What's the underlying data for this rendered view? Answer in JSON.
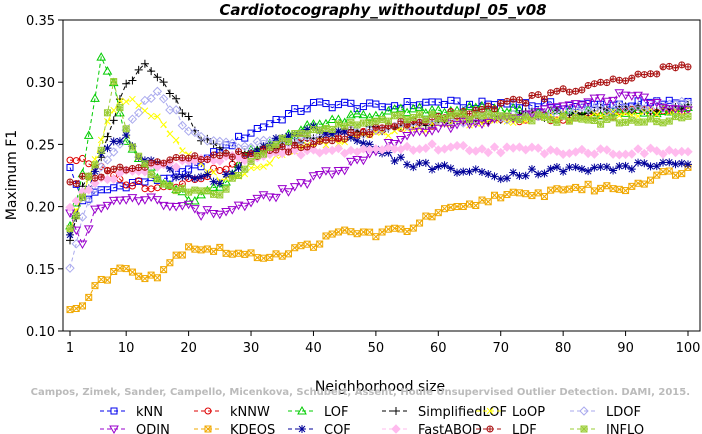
{
  "chart_data": {
    "type": "line",
    "title": "Cardiotocography_withoutdupl_05_v08",
    "xlabel": "Neighborhood size",
    "ylabel": "Maximum F1",
    "xlim": [
      1,
      100
    ],
    "ylim": [
      0.1,
      0.35
    ],
    "x_ticks": [
      1,
      10,
      20,
      30,
      40,
      50,
      60,
      70,
      80,
      90,
      100
    ],
    "y_ticks": [
      "0.10",
      "0.15",
      "0.20",
      "0.25",
      "0.30",
      "0.35"
    ],
    "grid": false,
    "legend_position": "bottom",
    "credit": "Campos, Zimek, Sander, Campello, Micenkova, Schubert, Assent, Houle  Unsupervised Outlier Detection. DAMI, 2015.",
    "series": [
      {
        "name": "kNN",
        "color": "#0000ee",
        "marker": "square",
        "anchors": [
          [
            1,
            0.23
          ],
          [
            3,
            0.205
          ],
          [
            6,
            0.212
          ],
          [
            10,
            0.218
          ],
          [
            15,
            0.222
          ],
          [
            20,
            0.228
          ],
          [
            25,
            0.245
          ],
          [
            30,
            0.26
          ],
          [
            35,
            0.272
          ],
          [
            40,
            0.282
          ],
          [
            45,
            0.282
          ],
          [
            50,
            0.28
          ],
          [
            55,
            0.282
          ],
          [
            60,
            0.284
          ],
          [
            65,
            0.281
          ],
          [
            70,
            0.283
          ],
          [
            80,
            0.281
          ],
          [
            90,
            0.282
          ],
          [
            100,
            0.284
          ]
        ]
      },
      {
        "name": "kNNW",
        "color": "#dd0000",
        "marker": "circle",
        "anchors": [
          [
            1,
            0.235
          ],
          [
            3,
            0.24
          ],
          [
            6,
            0.232
          ],
          [
            10,
            0.22
          ],
          [
            15,
            0.215
          ],
          [
            20,
            0.22
          ],
          [
            25,
            0.23
          ],
          [
            30,
            0.24
          ],
          [
            35,
            0.248
          ],
          [
            40,
            0.255
          ],
          [
            50,
            0.262
          ],
          [
            60,
            0.268
          ],
          [
            70,
            0.27
          ],
          [
            80,
            0.272
          ],
          [
            90,
            0.275
          ],
          [
            100,
            0.278
          ]
        ]
      },
      {
        "name": "LOF",
        "color": "#00cc00",
        "marker": "triangle",
        "anchors": [
          [
            1,
            0.185
          ],
          [
            3,
            0.225
          ],
          [
            6,
            0.32
          ],
          [
            8,
            0.3
          ],
          [
            10,
            0.255
          ],
          [
            12,
            0.24
          ],
          [
            15,
            0.225
          ],
          [
            20,
            0.205
          ],
          [
            25,
            0.215
          ],
          [
            30,
            0.245
          ],
          [
            35,
            0.255
          ],
          [
            40,
            0.265
          ],
          [
            45,
            0.27
          ],
          [
            50,
            0.275
          ],
          [
            60,
            0.278
          ],
          [
            70,
            0.278
          ],
          [
            80,
            0.275
          ],
          [
            90,
            0.275
          ],
          [
            100,
            0.278
          ]
        ]
      },
      {
        "name": "SimplifiedLOF",
        "color": "#000000",
        "marker": "plus",
        "anchors": [
          [
            1,
            0.17
          ],
          [
            3,
            0.215
          ],
          [
            6,
            0.24
          ],
          [
            8,
            0.27
          ],
          [
            10,
            0.3
          ],
          [
            13,
            0.312
          ],
          [
            15,
            0.305
          ],
          [
            18,
            0.285
          ],
          [
            20,
            0.27
          ],
          [
            22,
            0.255
          ],
          [
            25,
            0.245
          ],
          [
            28,
            0.24
          ],
          [
            30,
            0.245
          ],
          [
            35,
            0.248
          ],
          [
            40,
            0.255
          ],
          [
            45,
            0.26
          ],
          [
            50,
            0.262
          ],
          [
            60,
            0.268
          ],
          [
            70,
            0.272
          ],
          [
            80,
            0.275
          ],
          [
            90,
            0.278
          ],
          [
            100,
            0.28
          ]
        ]
      },
      {
        "name": "LoOP",
        "color": "#ffff00",
        "marker": "x",
        "anchors": [
          [
            1,
            0.18
          ],
          [
            3,
            0.21
          ],
          [
            6,
            0.255
          ],
          [
            8,
            0.28
          ],
          [
            10,
            0.285
          ],
          [
            13,
            0.28
          ],
          [
            15,
            0.27
          ],
          [
            18,
            0.255
          ],
          [
            20,
            0.24
          ],
          [
            22,
            0.235
          ],
          [
            25,
            0.22
          ],
          [
            30,
            0.23
          ],
          [
            35,
            0.24
          ],
          [
            40,
            0.25
          ],
          [
            50,
            0.258
          ],
          [
            60,
            0.265
          ],
          [
            70,
            0.27
          ],
          [
            80,
            0.272
          ],
          [
            90,
            0.275
          ],
          [
            100,
            0.278
          ]
        ]
      },
      {
        "name": "LDOF",
        "color": "#aaaaee",
        "marker": "diamond",
        "anchors": [
          [
            1,
            0.15
          ],
          [
            3,
            0.19
          ],
          [
            6,
            0.23
          ],
          [
            10,
            0.26
          ],
          [
            13,
            0.285
          ],
          [
            15,
            0.29
          ],
          [
            18,
            0.275
          ],
          [
            20,
            0.26
          ],
          [
            25,
            0.25
          ],
          [
            30,
            0.25
          ],
          [
            35,
            0.252
          ],
          [
            40,
            0.255
          ],
          [
            50,
            0.262
          ],
          [
            60,
            0.268
          ],
          [
            70,
            0.272
          ],
          [
            80,
            0.276
          ],
          [
            90,
            0.28
          ],
          [
            100,
            0.282
          ]
        ]
      },
      {
        "name": "ODIN",
        "color": "#9900cc",
        "marker": "triangle-down",
        "anchors": [
          [
            1,
            0.195
          ],
          [
            3,
            0.17
          ],
          [
            5,
            0.2
          ],
          [
            10,
            0.205
          ],
          [
            15,
            0.205
          ],
          [
            20,
            0.2
          ],
          [
            22,
            0.195
          ],
          [
            25,
            0.195
          ],
          [
            30,
            0.203
          ],
          [
            35,
            0.212
          ],
          [
            40,
            0.222
          ],
          [
            45,
            0.232
          ],
          [
            50,
            0.245
          ],
          [
            55,
            0.255
          ],
          [
            60,
            0.265
          ],
          [
            70,
            0.27
          ],
          [
            80,
            0.28
          ],
          [
            90,
            0.29
          ],
          [
            100,
            0.275
          ]
        ]
      },
      {
        "name": "KDEOS",
        "color": "#f0a800",
        "marker": "square-x",
        "anchors": [
          [
            1,
            0.12
          ],
          [
            3,
            0.12
          ],
          [
            5,
            0.135
          ],
          [
            8,
            0.148
          ],
          [
            10,
            0.15
          ],
          [
            13,
            0.145
          ],
          [
            15,
            0.145
          ],
          [
            18,
            0.16
          ],
          [
            20,
            0.168
          ],
          [
            25,
            0.165
          ],
          [
            30,
            0.16
          ],
          [
            35,
            0.162
          ],
          [
            40,
            0.17
          ],
          [
            45,
            0.18
          ],
          [
            50,
            0.178
          ],
          [
            55,
            0.182
          ],
          [
            60,
            0.195
          ],
          [
            65,
            0.2
          ],
          [
            70,
            0.21
          ],
          [
            75,
            0.208
          ],
          [
            80,
            0.215
          ],
          [
            85,
            0.215
          ],
          [
            90,
            0.215
          ],
          [
            95,
            0.225
          ],
          [
            100,
            0.23
          ]
        ]
      },
      {
        "name": "COF",
        "color": "#000099",
        "marker": "star",
        "anchors": [
          [
            1,
            0.18
          ],
          [
            3,
            0.205
          ],
          [
            6,
            0.24
          ],
          [
            8,
            0.255
          ],
          [
            10,
            0.255
          ],
          [
            12,
            0.24
          ],
          [
            15,
            0.235
          ],
          [
            18,
            0.225
          ],
          [
            20,
            0.222
          ],
          [
            22,
            0.225
          ],
          [
            25,
            0.22
          ],
          [
            28,
            0.23
          ],
          [
            30,
            0.245
          ],
          [
            35,
            0.255
          ],
          [
            40,
            0.262
          ],
          [
            45,
            0.26
          ],
          [
            50,
            0.245
          ],
          [
            55,
            0.235
          ],
          [
            60,
            0.232
          ],
          [
            65,
            0.228
          ],
          [
            70,
            0.225
          ],
          [
            75,
            0.228
          ],
          [
            80,
            0.23
          ],
          [
            85,
            0.23
          ],
          [
            90,
            0.232
          ],
          [
            95,
            0.234
          ],
          [
            100,
            0.236
          ]
        ]
      },
      {
        "name": "FastABOD",
        "color": "#ffbbee",
        "marker": "diamond-filled",
        "anchors": [
          [
            1,
            0.2
          ],
          [
            3,
            0.21
          ],
          [
            6,
            0.22
          ],
          [
            10,
            0.228
          ],
          [
            15,
            0.232
          ],
          [
            20,
            0.236
          ],
          [
            30,
            0.24
          ],
          [
            40,
            0.244
          ],
          [
            50,
            0.246
          ],
          [
            60,
            0.248
          ],
          [
            70,
            0.246
          ],
          [
            80,
            0.245
          ],
          [
            90,
            0.244
          ],
          [
            100,
            0.244
          ]
        ]
      },
      {
        "name": "LDF",
        "color": "#aa1111",
        "marker": "circle-plus",
        "anchors": [
          [
            1,
            0.22
          ],
          [
            5,
            0.225
          ],
          [
            10,
            0.23
          ],
          [
            15,
            0.235
          ],
          [
            20,
            0.238
          ],
          [
            25,
            0.24
          ],
          [
            30,
            0.242
          ],
          [
            40,
            0.25
          ],
          [
            50,
            0.262
          ],
          [
            60,
            0.272
          ],
          [
            70,
            0.282
          ],
          [
            80,
            0.292
          ],
          [
            90,
            0.302
          ],
          [
            100,
            0.315
          ]
        ]
      },
      {
        "name": "INFLO",
        "color": "#99cc33",
        "marker": "square-star",
        "anchors": [
          [
            1,
            0.18
          ],
          [
            3,
            0.21
          ],
          [
            6,
            0.245
          ],
          [
            8,
            0.3
          ],
          [
            10,
            0.26
          ],
          [
            12,
            0.24
          ],
          [
            15,
            0.22
          ],
          [
            20,
            0.21
          ],
          [
            25,
            0.212
          ],
          [
            30,
            0.235
          ],
          [
            35,
            0.252
          ],
          [
            40,
            0.262
          ],
          [
            50,
            0.27
          ],
          [
            60,
            0.272
          ],
          [
            70,
            0.272
          ],
          [
            80,
            0.27
          ],
          [
            90,
            0.268
          ],
          [
            100,
            0.27
          ]
        ]
      }
    ]
  }
}
